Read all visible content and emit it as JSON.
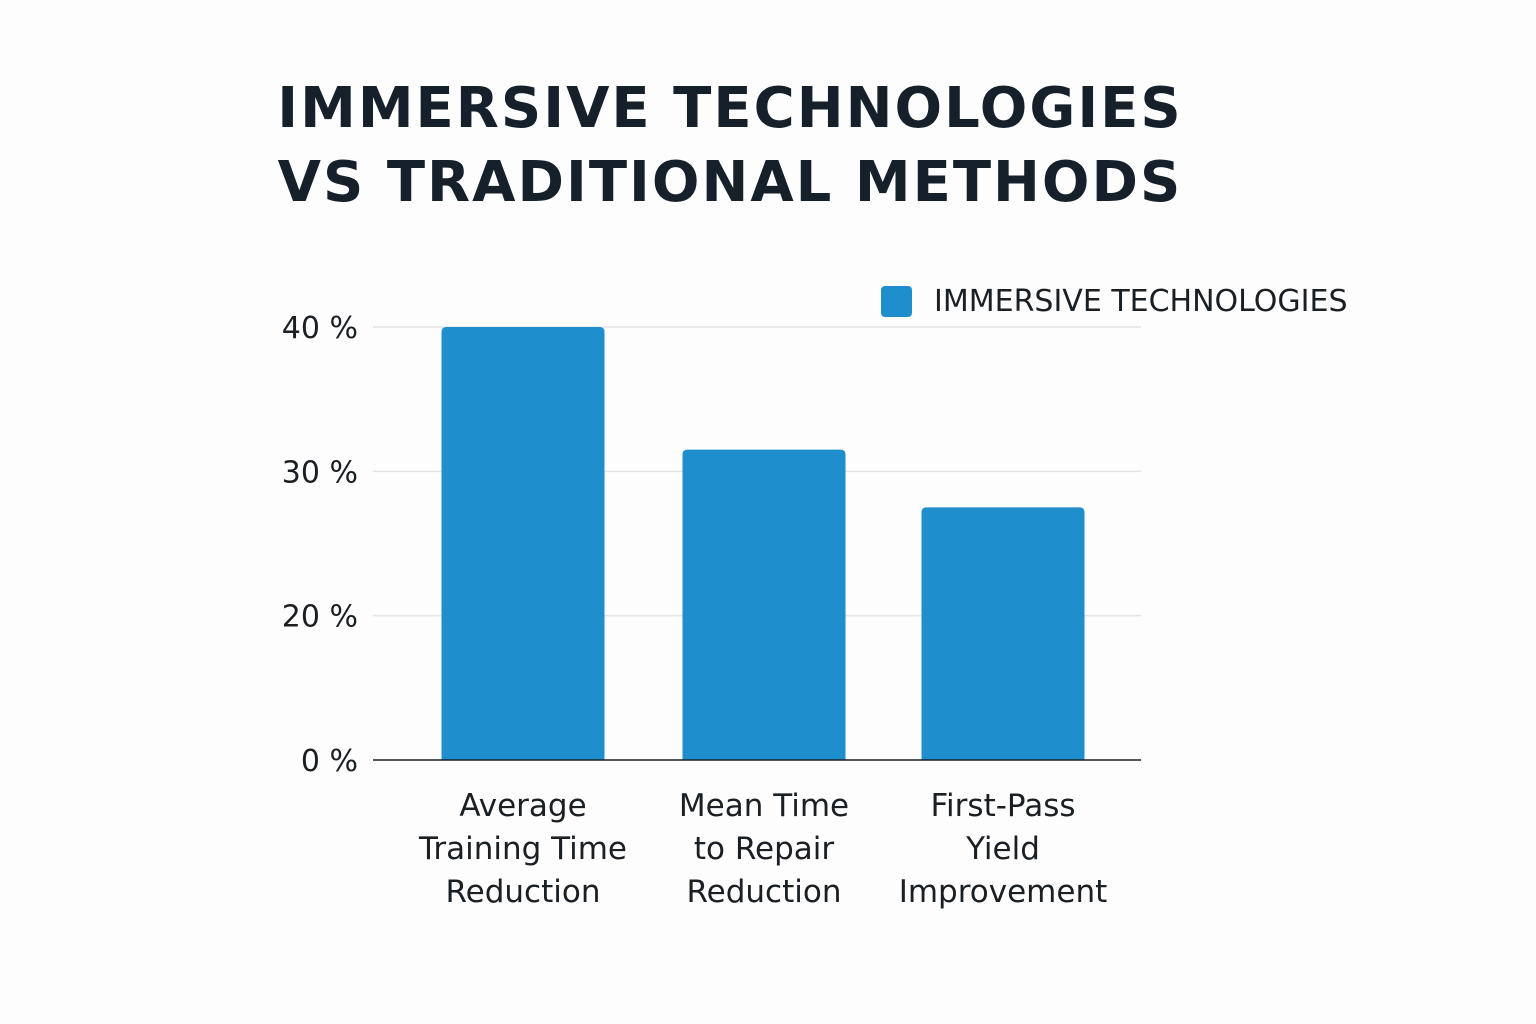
{
  "title_lines": [
    "IMMERSIVE TECHNOLOGIES",
    "VS TRADITIONAL METHODS"
  ],
  "chart_data": {
    "type": "bar",
    "title": "IMMERSIVE TECHNOLOGIES VS TRADITIONAL METHODS",
    "categories": [
      [
        "Average",
        "Training Time",
        "Reduction"
      ],
      [
        "Mean Time",
        "to Repair",
        "Reduction"
      ],
      [
        "First-Pass",
        "Yield",
        "Improvement"
      ]
    ],
    "series": [
      {
        "name": "IMMERSIVE TECHNOLOGIES",
        "values": [
          40,
          31.5,
          27.5
        ],
        "color": "#1e8fcc"
      }
    ],
    "y_ticks": [
      0,
      20,
      30,
      40
    ],
    "y_tick_labels": [
      "0 %",
      "20 %",
      "30 %",
      "40 %"
    ],
    "ylim": [
      0,
      40
    ],
    "grid": true,
    "legend_position": "top-right",
    "xlabel": "",
    "ylabel": ""
  }
}
